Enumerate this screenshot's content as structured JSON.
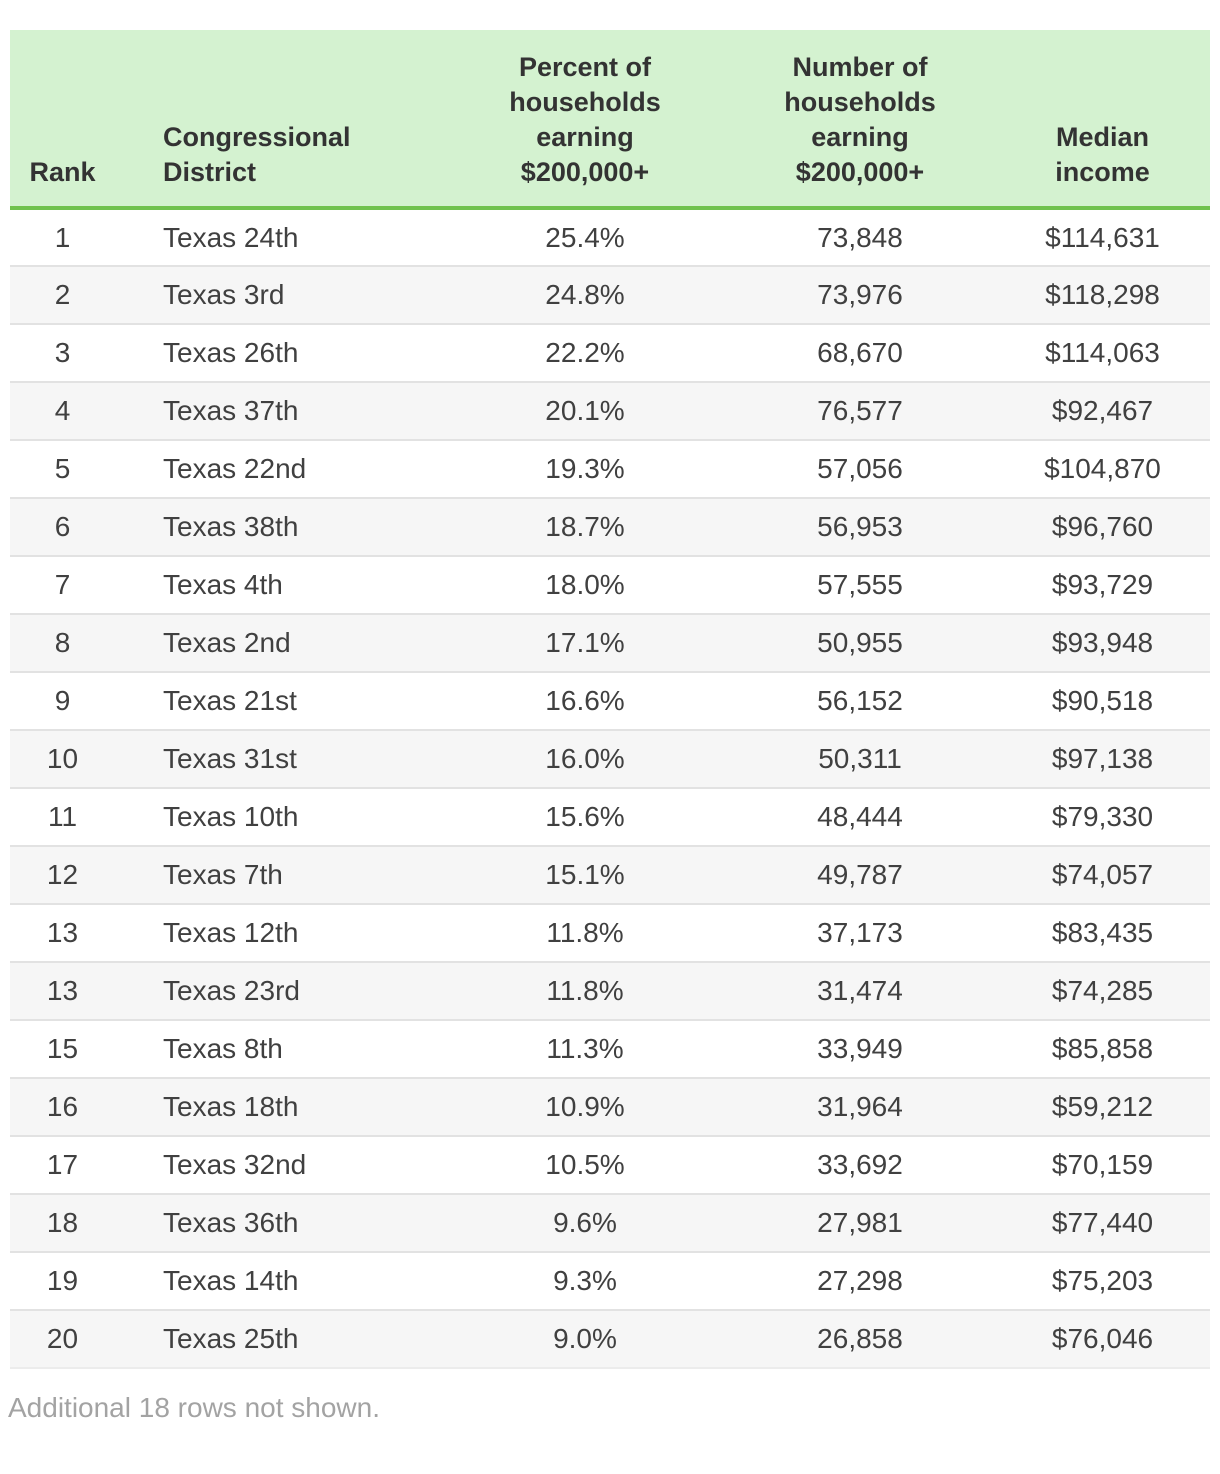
{
  "chart_data": {
    "type": "table",
    "title": "",
    "columns": [
      {
        "id": "rank",
        "label": "Rank"
      },
      {
        "id": "district",
        "label": "Congressional District"
      },
      {
        "id": "percent",
        "label": "Percent of households earning $200,000+"
      },
      {
        "id": "number",
        "label": "Number of households earning $200,000+"
      },
      {
        "id": "median",
        "label": "Median income"
      }
    ],
    "rows": [
      {
        "rank": "1",
        "district": "Texas 24th",
        "percent": "25.4%",
        "number": "73,848",
        "median": "$114,631"
      },
      {
        "rank": "2",
        "district": "Texas 3rd",
        "percent": "24.8%",
        "number": "73,976",
        "median": "$118,298"
      },
      {
        "rank": "3",
        "district": "Texas 26th",
        "percent": "22.2%",
        "number": "68,670",
        "median": "$114,063"
      },
      {
        "rank": "4",
        "district": "Texas 37th",
        "percent": "20.1%",
        "number": "76,577",
        "median": "$92,467"
      },
      {
        "rank": "5",
        "district": "Texas 22nd",
        "percent": "19.3%",
        "number": "57,056",
        "median": "$104,870"
      },
      {
        "rank": "6",
        "district": "Texas 38th",
        "percent": "18.7%",
        "number": "56,953",
        "median": "$96,760"
      },
      {
        "rank": "7",
        "district": "Texas 4th",
        "percent": "18.0%",
        "number": "57,555",
        "median": "$93,729"
      },
      {
        "rank": "8",
        "district": "Texas 2nd",
        "percent": "17.1%",
        "number": "50,955",
        "median": "$93,948"
      },
      {
        "rank": "9",
        "district": "Texas 21st",
        "percent": "16.6%",
        "number": "56,152",
        "median": "$90,518"
      },
      {
        "rank": "10",
        "district": "Texas 31st",
        "percent": "16.0%",
        "number": "50,311",
        "median": "$97,138"
      },
      {
        "rank": "11",
        "district": "Texas 10th",
        "percent": "15.6%",
        "number": "48,444",
        "median": "$79,330"
      },
      {
        "rank": "12",
        "district": "Texas 7th",
        "percent": "15.1%",
        "number": "49,787",
        "median": "$74,057"
      },
      {
        "rank": "13",
        "district": "Texas 12th",
        "percent": "11.8%",
        "number": "37,173",
        "median": "$83,435"
      },
      {
        "rank": "13",
        "district": "Texas 23rd",
        "percent": "11.8%",
        "number": "31,474",
        "median": "$74,285"
      },
      {
        "rank": "15",
        "district": "Texas 8th",
        "percent": "11.3%",
        "number": "33,949",
        "median": "$85,858"
      },
      {
        "rank": "16",
        "district": "Texas 18th",
        "percent": "10.9%",
        "number": "31,964",
        "median": "$59,212"
      },
      {
        "rank": "17",
        "district": "Texas 32nd",
        "percent": "10.5%",
        "number": "33,692",
        "median": "$70,159"
      },
      {
        "rank": "18",
        "district": "Texas 36th",
        "percent": "9.6%",
        "number": "27,981",
        "median": "$77,440"
      },
      {
        "rank": "19",
        "district": "Texas 14th",
        "percent": "9.3%",
        "number": "27,298",
        "median": "$75,203"
      },
      {
        "rank": "20",
        "district": "Texas 25th",
        "percent": "9.0%",
        "number": "26,858",
        "median": "$76,046"
      }
    ],
    "footnote": "Additional 18 rows not shown.",
    "layout": {
      "alternating_rows": true,
      "header_position": "top"
    }
  },
  "colors": {
    "header_bg": "#d4f2d0",
    "header_rule_green": "#70c24e",
    "alt_row_bg": "#f6f6f6",
    "row_border": "#e2e2e2",
    "header_text": "#333333",
    "body_text": "#404040",
    "footnote_text": "#a3a3a3"
  }
}
